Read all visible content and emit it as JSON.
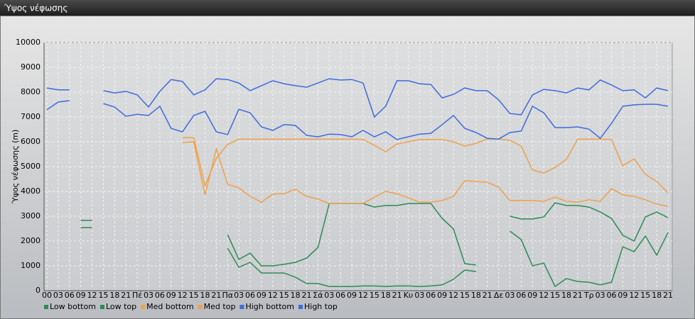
{
  "window": {
    "title": "Ύψος νέφωσης"
  },
  "chart_data": {
    "type": "line",
    "y_label": "Ύψος νέφωσης (m)",
    "categories": [
      "00",
      "03",
      "06",
      "09",
      "12",
      "15",
      "18",
      "21",
      "Πέ",
      "03",
      "06",
      "09",
      "12",
      "15",
      "18",
      "21",
      "Πα",
      "03",
      "06",
      "09",
      "12",
      "15",
      "18",
      "21",
      "Σά",
      "03",
      "06",
      "09",
      "12",
      "15",
      "18",
      "21",
      "Κυ",
      "03",
      "06",
      "09",
      "12",
      "15",
      "18",
      "21",
      "Δε",
      "03",
      "06",
      "09",
      "12",
      "15",
      "18",
      "21",
      "Τρ",
      "03",
      "06",
      "09",
      "12",
      "15",
      "18",
      "21"
    ],
    "ylim": [
      0,
      10000
    ],
    "yticks": [
      0,
      1000,
      2000,
      3000,
      4000,
      5000,
      6000,
      7000,
      8000,
      9000,
      10000
    ],
    "grid": true,
    "legend": "bottom",
    "series": [
      {
        "name": "Low bottom",
        "color": "#2e8b57",
        "values": [
          null,
          null,
          null,
          2540,
          2540,
          null,
          null,
          null,
          null,
          null,
          null,
          null,
          null,
          null,
          null,
          null,
          1710,
          940,
          1140,
          710,
          710,
          710,
          540,
          290,
          290,
          170,
          170,
          170,
          190,
          190,
          170,
          190,
          190,
          170,
          190,
          230,
          460,
          830,
          770,
          null,
          null,
          2400,
          2060,
          1000,
          1110,
          170,
          490,
          370,
          340,
          230,
          340,
          1770,
          1570,
          2200,
          1430,
          2340
        ]
      },
      {
        "name": "Low top",
        "color": "#2e8b57",
        "values": [
          null,
          null,
          null,
          2830,
          2830,
          null,
          null,
          null,
          null,
          null,
          null,
          null,
          null,
          null,
          null,
          null,
          2260,
          1260,
          1510,
          1000,
          1000,
          1060,
          1140,
          1310,
          1740,
          3510,
          3510,
          3510,
          3510,
          3370,
          3430,
          3430,
          3510,
          3510,
          3510,
          2910,
          2490,
          1090,
          1030,
          null,
          null,
          3000,
          2890,
          2890,
          2970,
          3540,
          3430,
          3430,
          3370,
          3170,
          2910,
          2230,
          2000,
          2970,
          3170,
          2940
        ]
      },
      {
        "name": "Med bottom",
        "color": "#f0a04b",
        "values": [
          null,
          null,
          null,
          null,
          null,
          null,
          null,
          null,
          null,
          null,
          null,
          null,
          5970,
          6000,
          3860,
          5710,
          4290,
          4140,
          3800,
          3570,
          3890,
          3910,
          4090,
          3800,
          3690,
          3510,
          3510,
          3510,
          3510,
          3770,
          4000,
          3910,
          3740,
          3570,
          3570,
          3630,
          3800,
          4430,
          4400,
          4370,
          4170,
          3630,
          3630,
          3630,
          3600,
          3770,
          3600,
          3570,
          3660,
          3600,
          4110,
          3860,
          3800,
          3660,
          3490,
          3400
        ]
      },
      {
        "name": "Med top",
        "color": "#f0a04b",
        "values": [
          null,
          null,
          null,
          null,
          null,
          null,
          null,
          null,
          null,
          null,
          null,
          null,
          6170,
          6170,
          4230,
          5340,
          5890,
          6110,
          6110,
          6110,
          6110,
          6110,
          6110,
          6110,
          6110,
          6110,
          6110,
          6110,
          6090,
          5860,
          5600,
          5910,
          6000,
          6090,
          6090,
          6090,
          6000,
          5830,
          5940,
          6110,
          6110,
          6060,
          5830,
          4860,
          4740,
          4970,
          5290,
          6110,
          6110,
          6110,
          6090,
          5030,
          5310,
          4690,
          4400,
          3940
        ]
      },
      {
        "name": "High bottom",
        "color": "#3f6ae0",
        "values": [
          7290,
          7600,
          7660,
          null,
          null,
          7540,
          7400,
          7030,
          7110,
          7060,
          7430,
          6540,
          6400,
          7060,
          7230,
          6400,
          6290,
          7310,
          7170,
          6600,
          6460,
          6690,
          6660,
          6260,
          6200,
          6310,
          6290,
          6200,
          6460,
          6200,
          6400,
          6090,
          6200,
          6310,
          6340,
          6690,
          7060,
          6540,
          6370,
          6140,
          6110,
          6370,
          6430,
          7430,
          7170,
          6570,
          6570,
          6600,
          6510,
          6140,
          6740,
          7430,
          7490,
          7510,
          7510,
          7430
        ]
      },
      {
        "name": "High top",
        "color": "#3f6ae0",
        "values": [
          8170,
          8090,
          8090,
          null,
          null,
          8060,
          7970,
          8030,
          7890,
          7400,
          8030,
          8510,
          8430,
          7890,
          8090,
          8540,
          8510,
          8370,
          8060,
          8260,
          8460,
          8340,
          8260,
          8200,
          8370,
          8540,
          8490,
          8510,
          8370,
          7000,
          7430,
          8460,
          8460,
          8340,
          8310,
          7770,
          7910,
          8170,
          8060,
          8060,
          7690,
          7140,
          7090,
          7890,
          8110,
          8060,
          7970,
          8170,
          8090,
          8490,
          8290,
          8060,
          8090,
          7770,
          8170,
          8060
        ]
      }
    ]
  }
}
